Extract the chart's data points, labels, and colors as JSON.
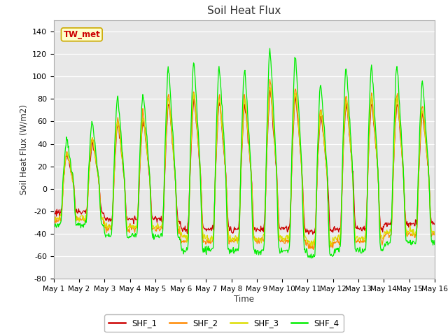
{
  "title": "Soil Heat Flux",
  "ylabel": "Soil Heat Flux (W/m2)",
  "xlabel": "Time",
  "ylim": [
    -80,
    150
  ],
  "yticks": [
    -80,
    -60,
    -40,
    -20,
    0,
    20,
    40,
    60,
    80,
    100,
    120,
    140
  ],
  "background_color": "#ffffff",
  "axes_facecolor": "#e8e8e8",
  "grid_color": "white",
  "series": [
    "SHF_1",
    "SHF_2",
    "SHF_3",
    "SHF_4"
  ],
  "colors": [
    "#cc0000",
    "#ff8800",
    "#dddd00",
    "#00ee00"
  ],
  "annotation_text": "TW_met",
  "annotation_facecolor": "#ffffcc",
  "annotation_edgecolor": "#ccaa00",
  "annotation_textcolor": "#cc0000",
  "x_tick_labels": [
    "May 1",
    "May 2",
    "May 3",
    "May 4",
    "May 5",
    "May 6",
    "May 7",
    "May 8",
    "May 9",
    "May 10",
    "May 11",
    "May 12",
    "May 13",
    "May 14",
    "May 15",
    "May 16"
  ],
  "num_days": 15,
  "points_per_day": 48,
  "day_peaks_shf4": [
    48,
    65,
    90,
    94,
    120,
    125,
    120,
    118,
    138,
    130,
    103,
    120,
    121,
    121,
    105
  ],
  "day_troughs": [
    -32,
    -32,
    -42,
    -42,
    -42,
    -55,
    -55,
    -55,
    -55,
    -55,
    -60,
    -55,
    -55,
    -48,
    -48
  ]
}
